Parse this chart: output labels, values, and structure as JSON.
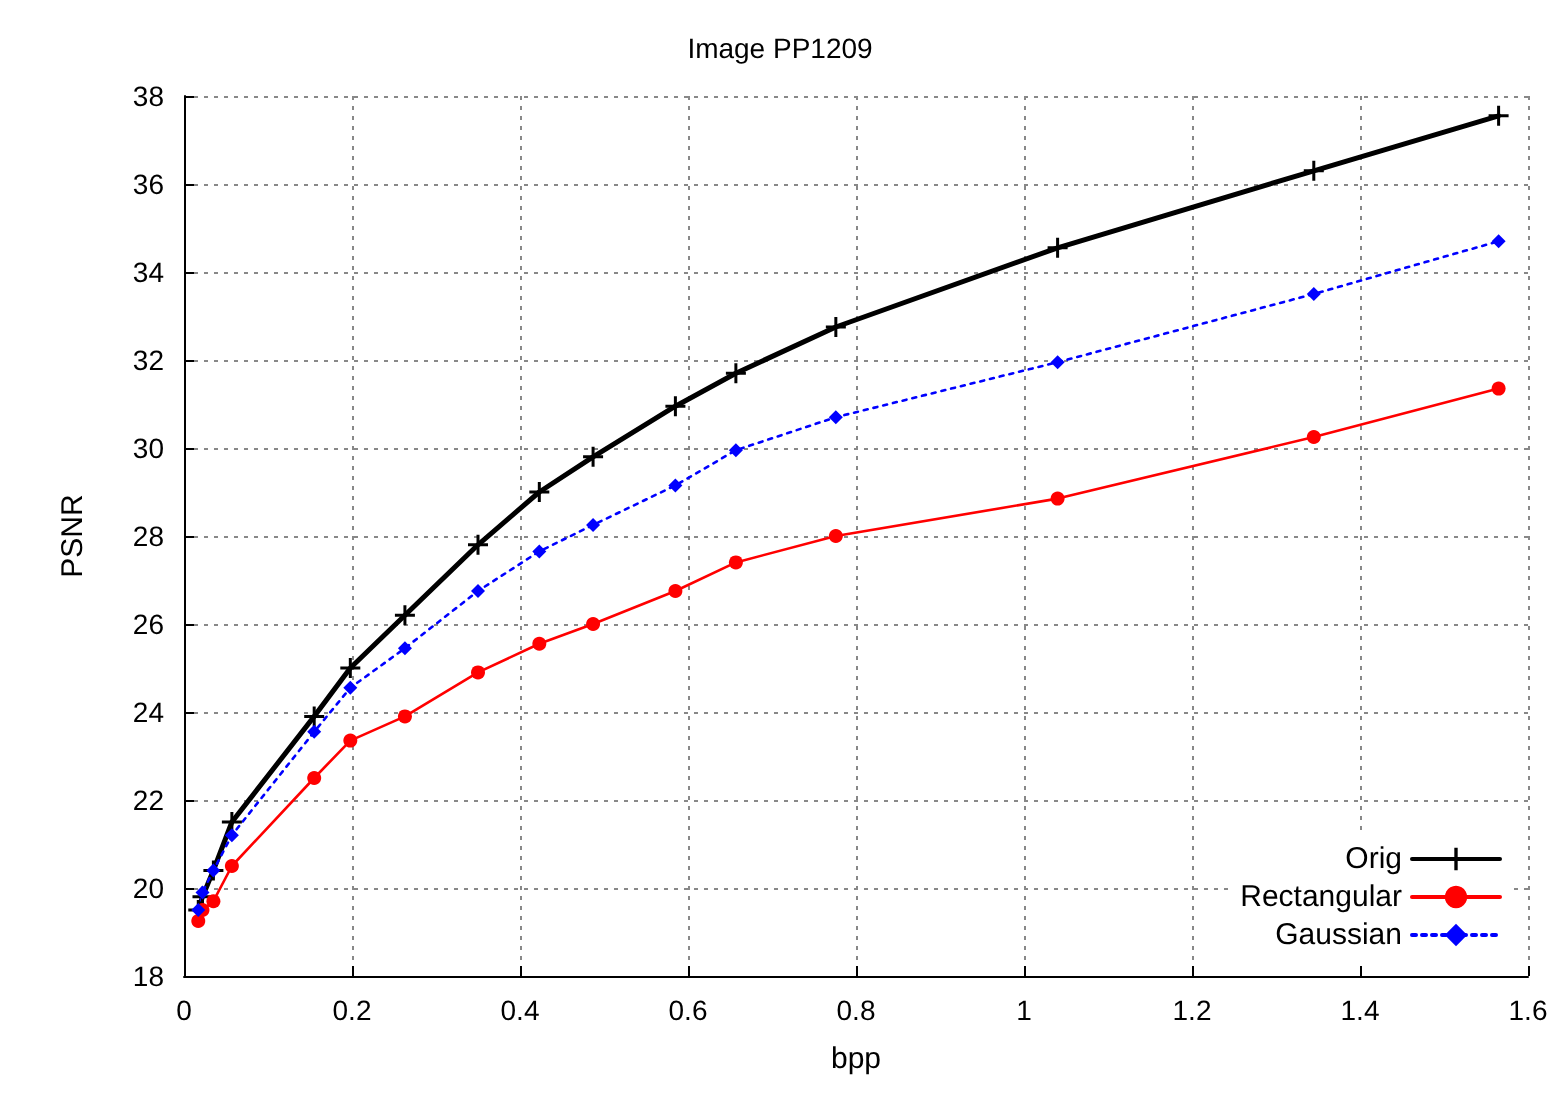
{
  "chart_data": {
    "type": "line",
    "title": "Image PP1209",
    "xlabel": "bpp",
    "ylabel": "PSNR",
    "x": [
      0.017,
      0.022,
      0.035,
      0.057,
      0.155,
      0.198,
      0.263,
      0.35,
      0.423,
      0.487,
      0.585,
      0.657,
      0.776,
      1.04,
      1.345,
      1.565
    ],
    "series": [
      {
        "name": "Orig",
        "color": "#000000",
        "marker": "cross",
        "line_style": "solid",
        "values": [
          19.5,
          19.8,
          20.4,
          21.5,
          23.9,
          25.0,
          26.2,
          27.8,
          29.0,
          29.8,
          30.95,
          31.7,
          32.75,
          34.55,
          36.3,
          37.55
        ]
      },
      {
        "name": "Rectangular",
        "color": "#ff0000",
        "marker": "circle",
        "line_style": "solid",
        "values": [
          19.25,
          19.5,
          19.7,
          20.5,
          22.5,
          23.35,
          23.9,
          24.9,
          25.55,
          26.0,
          26.75,
          27.4,
          28.0,
          28.85,
          30.25,
          31.35
        ]
      },
      {
        "name": "Gaussian",
        "color": "#0000ff",
        "marker": "diamond",
        "line_style": "dotted",
        "values": [
          19.5,
          19.9,
          20.4,
          21.2,
          23.55,
          24.55,
          25.45,
          26.75,
          27.65,
          28.25,
          29.15,
          29.95,
          30.7,
          31.95,
          33.5,
          34.7
        ]
      }
    ],
    "xlim": [
      0,
      1.6
    ],
    "xticks": [
      0,
      0.2,
      0.4,
      0.6,
      0.8,
      1,
      1.2,
      1.4,
      1.6
    ],
    "ylim": [
      18,
      38
    ],
    "yticks": [
      18,
      20,
      22,
      24,
      26,
      28,
      30,
      32,
      34,
      36,
      38
    ],
    "grid": true,
    "legend": "bottom right"
  }
}
